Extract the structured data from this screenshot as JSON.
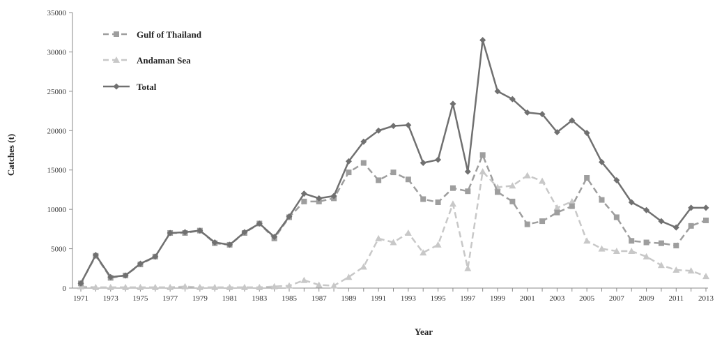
{
  "chart_data": {
    "type": "line",
    "title": "",
    "xlabel": "Year",
    "ylabel": "Catches (t)",
    "xlim": [
      1971,
      2013
    ],
    "ylim": [
      0,
      35000
    ],
    "y_ticks": [
      "0",
      "5000",
      "10000",
      "15000",
      "20000",
      "25000",
      "30000",
      "35000"
    ],
    "x_ticks": [
      "1971",
      "1973",
      "1975",
      "1977",
      "1979",
      "1981",
      "1983",
      "1985",
      "1987",
      "1989",
      "1991",
      "1993",
      "1995",
      "1997",
      "1999",
      "2001",
      "2003",
      "2005",
      "2007",
      "2009",
      "2011",
      "2013"
    ],
    "grid": false,
    "legend_position": "top-left",
    "x": [
      1971,
      1972,
      1973,
      1974,
      1975,
      1976,
      1977,
      1978,
      1979,
      1980,
      1981,
      1982,
      1983,
      1984,
      1985,
      1986,
      1987,
      1988,
      1989,
      1990,
      1991,
      1992,
      1993,
      1994,
      1995,
      1996,
      1997,
      1998,
      1999,
      2000,
      2001,
      2002,
      2003,
      2004,
      2005,
      2006,
      2007,
      2008,
      2009,
      2010,
      2011,
      2012,
      2013
    ],
    "series": [
      {
        "name": "Gulf of Thailand",
        "color": "#9e9e9e",
        "dash": true,
        "marker": "square",
        "values": [
          600,
          4100,
          1300,
          1600,
          3000,
          4000,
          7000,
          7000,
          7300,
          5700,
          5500,
          7000,
          8200,
          6300,
          9000,
          11000,
          11000,
          11400,
          14700,
          15900,
          13700,
          14700,
          13800,
          11300,
          10900,
          12700,
          12300,
          16900,
          12200,
          11000,
          8100,
          8500,
          9600,
          10400,
          14000,
          11200,
          9000,
          6000,
          5800,
          5700,
          5400,
          7900,
          8600
        ]
      },
      {
        "name": "Andaman Sea",
        "color": "#c8c8c8",
        "dash": true,
        "marker": "triangle",
        "values": [
          200,
          100,
          100,
          100,
          100,
          100,
          100,
          200,
          100,
          100,
          100,
          100,
          100,
          200,
          300,
          1000,
          400,
          300,
          1400,
          2700,
          6300,
          5800,
          7000,
          4500,
          5500,
          10700,
          2500,
          14800,
          12800,
          13000,
          14300,
          13600,
          10200,
          11000,
          6000,
          5000,
          4700,
          4700,
          4000,
          2900,
          2300,
          2200,
          1500
        ]
      },
      {
        "name": "Total",
        "color": "#707070",
        "dash": false,
        "marker": "diamond",
        "values": [
          600,
          4200,
          1400,
          1600,
          3100,
          4000,
          7000,
          7100,
          7300,
          5800,
          5500,
          7100,
          8200,
          6500,
          9100,
          12000,
          11400,
          11700,
          16100,
          18600,
          20000,
          20600,
          20700,
          15900,
          16300,
          23400,
          14800,
          31500,
          25000,
          24000,
          22300,
          22100,
          19800,
          21300,
          19700,
          16000,
          13700,
          10900,
          9900,
          8500,
          7700,
          10200,
          10200
        ]
      }
    ]
  }
}
